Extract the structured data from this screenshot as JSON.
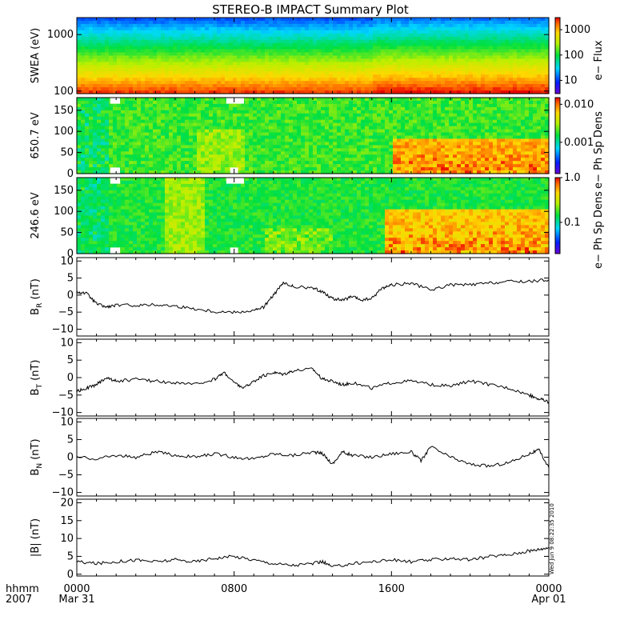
{
  "title": "STEREO-B IMPACT Summary Plot",
  "timestamp_text": "Wed Jun  9 08:22:35 2010",
  "x_axis": {
    "row1_label": "hhmm",
    "row2_label": "2007",
    "ticks": [
      {
        "hours": 0,
        "label": "0000",
        "sublabel": "Mar 31"
      },
      {
        "hours": 8,
        "label": "0800",
        "sublabel": ""
      },
      {
        "hours": 16,
        "label": "1600",
        "sublabel": ""
      },
      {
        "hours": 24,
        "label": "0000",
        "sublabel": "Apr 01"
      }
    ],
    "range_hours": [
      0,
      24
    ]
  },
  "chart_data": [
    {
      "type": "heatmap",
      "panel": "swea",
      "ylabel": "SWEA (eV)",
      "yscale": "log",
      "yticks": [
        {
          "v": 100,
          "label": "100"
        },
        {
          "v": 1000,
          "label": "1000"
        }
      ],
      "ylim": [
        90,
        2000
      ],
      "colorbar_label": "e− Flux",
      "colorbar_ticks": [
        {
          "v": 10,
          "label": "10"
        },
        {
          "v": 100,
          "label": "100"
        },
        {
          "v": 1000,
          "label": "1000"
        }
      ],
      "colorbar_range": [
        3,
        3000
      ],
      "description_profile": "flux decreases with energy: red near 100 eV, green near 600 eV, blue/purple near 2000 eV"
    },
    {
      "type": "heatmap",
      "panel": "pad650",
      "ylabel": "650.7 eV",
      "ylim": [
        0,
        180
      ],
      "yticks": [
        {
          "v": 0,
          "label": "0"
        },
        {
          "v": 50,
          "label": "50"
        },
        {
          "v": 100,
          "label": "100"
        },
        {
          "v": 150,
          "label": "150"
        }
      ],
      "colorbar_label": "e− Ph Sp Dens",
      "colorbar_scale": "log",
      "colorbar_range": [
        0.00015,
        0.015
      ],
      "colorbar_ticks": [
        {
          "v": 0.001,
          "label": "0.001"
        },
        {
          "v": 0.01,
          "label": "0.010"
        }
      ]
    },
    {
      "type": "heatmap",
      "panel": "pad246",
      "ylabel": "246.6 eV",
      "ylim": [
        0,
        180
      ],
      "yticks": [
        {
          "v": 0,
          "label": "0"
        },
        {
          "v": 50,
          "label": "50"
        },
        {
          "v": 100,
          "label": "100"
        },
        {
          "v": 150,
          "label": "150"
        }
      ],
      "colorbar_label": "e− Ph Sp Dens",
      "colorbar_scale": "log",
      "colorbar_range": [
        0.02,
        1.0
      ],
      "colorbar_ticks": [
        {
          "v": 0.1,
          "label": "0.1"
        },
        {
          "v": 1.0,
          "label": "1.0"
        }
      ]
    },
    {
      "type": "line",
      "panel": "br",
      "ylabel_main": "B",
      "ylabel_sub": "R",
      "ylabel_unit": " (nT)",
      "ylim": [
        -12,
        11
      ],
      "yticks": [
        {
          "v": -10,
          "label": "−10"
        },
        {
          "v": -5,
          "label": "−5"
        },
        {
          "v": 0,
          "label": "0"
        },
        {
          "v": 5,
          "label": "5"
        },
        {
          "v": 10,
          "label": "10"
        }
      ],
      "x": [
        0,
        0.5,
        1,
        1.5,
        2,
        3,
        4,
        5,
        6,
        7,
        8,
        9,
        9.5,
        10,
        10.5,
        11,
        12,
        12.5,
        13,
        13.5,
        14,
        14.5,
        15,
        15.5,
        16,
        17,
        18,
        19,
        20,
        21,
        22,
        23,
        24
      ],
      "y": [
        1,
        0.5,
        -2.5,
        -3.5,
        -3,
        -3,
        -2.8,
        -3.2,
        -4,
        -4.8,
        -5,
        -4.5,
        -3.5,
        0,
        3.5,
        2.5,
        2,
        1,
        -1,
        -1.5,
        -0.5,
        -1.5,
        -1,
        2,
        3,
        3.5,
        1.5,
        3,
        3,
        3.5,
        4,
        4,
        4.5
      ]
    },
    {
      "type": "line",
      "panel": "bt",
      "ylabel_main": "B",
      "ylabel_sub": "T",
      "ylabel_unit": " (nT)",
      "ylim": [
        -11,
        11
      ],
      "yticks": [
        {
          "v": -10,
          "label": "−10"
        },
        {
          "v": -5,
          "label": "−5"
        },
        {
          "v": 0,
          "label": "0"
        },
        {
          "v": 5,
          "label": "5"
        },
        {
          "v": 10,
          "label": "10"
        }
      ],
      "x": [
        0,
        0.5,
        1,
        1.5,
        2,
        3,
        4,
        5,
        6,
        7,
        7.5,
        8,
        8.5,
        9,
        9.5,
        10,
        10.5,
        11,
        12,
        12.5,
        13,
        13.5,
        14,
        15,
        16,
        17,
        18,
        19,
        20,
        21,
        22,
        23,
        23.5,
        24
      ],
      "y": [
        -4,
        -3,
        -2,
        0,
        -1,
        -0.5,
        -1,
        -1.5,
        -2,
        -0.5,
        1.5,
        -1.5,
        -3,
        -1,
        0.5,
        1.5,
        1,
        2,
        2.5,
        -0.5,
        -1,
        -2,
        -1.5,
        -3,
        -1.5,
        -1,
        -2,
        -2.5,
        -1,
        -2,
        -3,
        -5,
        -6,
        -7
      ]
    },
    {
      "type": "line",
      "panel": "bn",
      "ylabel_main": "B",
      "ylabel_sub": "N",
      "ylabel_unit": " (nT)",
      "ylim": [
        -11,
        11
      ],
      "yticks": [
        {
          "v": -10,
          "label": "−10"
        },
        {
          "v": -5,
          "label": "−5"
        },
        {
          "v": 0,
          "label": "0"
        },
        {
          "v": 5,
          "label": "5"
        },
        {
          "v": 10,
          "label": "10"
        }
      ],
      "x": [
        0,
        1,
        2,
        3,
        4,
        5,
        6,
        7,
        8,
        9,
        10,
        11,
        12,
        12.5,
        13,
        13.5,
        14,
        15,
        16,
        17,
        17.5,
        18,
        19,
        20,
        21,
        22,
        23,
        23.5,
        24
      ],
      "y": [
        0,
        -0.5,
        0.5,
        0,
        1.5,
        0.5,
        0,
        1,
        0,
        -0.5,
        1,
        0.5,
        1.5,
        1,
        -2,
        1.5,
        0.5,
        0,
        1,
        1.5,
        -1,
        3,
        0,
        -2,
        -2.5,
        -1.5,
        1,
        2,
        -3
      ]
    },
    {
      "type": "line",
      "panel": "bmag",
      "ylabel_main": "|B| (nT)",
      "ylim": [
        -0.5,
        21
      ],
      "yticks": [
        {
          "v": 0,
          "label": "0"
        },
        {
          "v": 5,
          "label": "5"
        },
        {
          "v": 10,
          "label": "10"
        },
        {
          "v": 15,
          "label": "15"
        },
        {
          "v": 20,
          "label": "20"
        }
      ],
      "x": [
        0,
        1,
        2,
        3,
        4,
        5,
        6,
        7,
        8,
        9,
        10,
        11,
        12,
        12.5,
        13,
        14,
        15,
        16,
        17,
        18,
        19,
        20,
        21,
        22,
        23,
        23.5,
        24
      ],
      "y": [
        3.5,
        3,
        3.5,
        4,
        3.5,
        4,
        3.5,
        4.5,
        5,
        4,
        3,
        2.5,
        3,
        3.5,
        2,
        3,
        3.5,
        4,
        3.5,
        4,
        4.5,
        4,
        5,
        5.5,
        6.5,
        7,
        7.5
      ]
    }
  ]
}
